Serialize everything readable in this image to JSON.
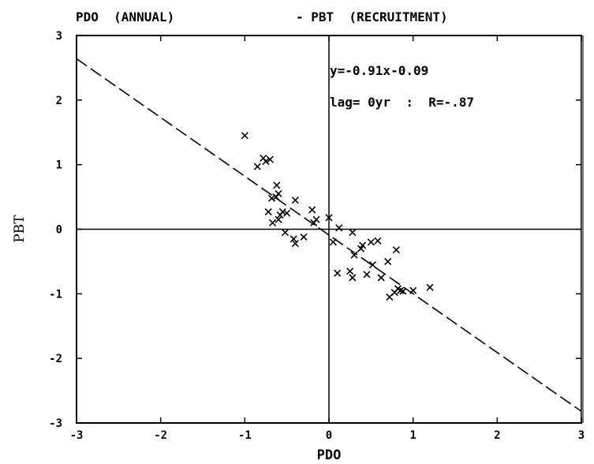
{
  "chart_data": {
    "type": "scatter",
    "title_left": "PDO  (ANNUAL)",
    "title_right": "- PBT  (RECRUITMENT)",
    "xlabel": "PDO",
    "ylabel": "PBT",
    "xlim": [
      -3,
      3
    ],
    "ylim": [
      -3,
      3
    ],
    "xticks": [
      -3,
      -2,
      -1,
      0,
      1,
      2,
      3
    ],
    "yticks": [
      -3,
      -2,
      -1,
      0,
      1,
      2,
      3
    ],
    "xtick_labels": [
      "-3",
      "-2",
      "-1",
      "0",
      "1",
      "2",
      "3"
    ],
    "ytick_labels": [
      "-3",
      "-2",
      "-1",
      "0",
      "1",
      "2",
      "3"
    ],
    "regression": {
      "slope": -0.91,
      "intercept": -0.09,
      "style": "dashed"
    },
    "annotations": {
      "equation": "y=-0.91x-0.09",
      "correlation": "lag= 0yr  :  R=-.87"
    },
    "marker": "x",
    "points": [
      {
        "x": -1.0,
        "y": 1.45
      },
      {
        "x": -0.85,
        "y": 0.97
      },
      {
        "x": -0.78,
        "y": 1.1
      },
      {
        "x": -0.75,
        "y": 1.05
      },
      {
        "x": -0.7,
        "y": 1.08
      },
      {
        "x": -0.62,
        "y": 0.68
      },
      {
        "x": -0.6,
        "y": 0.55
      },
      {
        "x": -0.63,
        "y": 0.5
      },
      {
        "x": -0.68,
        "y": 0.48
      },
      {
        "x": -0.72,
        "y": 0.27
      },
      {
        "x": -0.58,
        "y": 0.22
      },
      {
        "x": -0.55,
        "y": 0.27
      },
      {
        "x": -0.5,
        "y": 0.25
      },
      {
        "x": -0.67,
        "y": 0.1
      },
      {
        "x": -0.6,
        "y": 0.15
      },
      {
        "x": -0.52,
        "y": -0.05
      },
      {
        "x": -0.4,
        "y": 0.45
      },
      {
        "x": -0.42,
        "y": -0.15
      },
      {
        "x": -0.4,
        "y": -0.22
      },
      {
        "x": -0.3,
        "y": -0.12
      },
      {
        "x": -0.2,
        "y": 0.3
      },
      {
        "x": -0.18,
        "y": 0.1
      },
      {
        "x": -0.15,
        "y": 0.15
      },
      {
        "x": 0.0,
        "y": 0.18
      },
      {
        "x": 0.05,
        "y": -0.2
      },
      {
        "x": 0.12,
        "y": 0.02
      },
      {
        "x": 0.1,
        "y": -0.68
      },
      {
        "x": 0.28,
        "y": -0.05
      },
      {
        "x": 0.3,
        "y": -0.4
      },
      {
        "x": 0.25,
        "y": -0.65
      },
      {
        "x": 0.28,
        "y": -0.75
      },
      {
        "x": 0.38,
        "y": -0.3
      },
      {
        "x": 0.4,
        "y": -0.25
      },
      {
        "x": 0.45,
        "y": -0.7
      },
      {
        "x": 0.5,
        "y": -0.2
      },
      {
        "x": 0.52,
        "y": -0.55
      },
      {
        "x": 0.58,
        "y": -0.18
      },
      {
        "x": 0.62,
        "y": -0.75
      },
      {
        "x": 0.7,
        "y": -0.5
      },
      {
        "x": 0.8,
        "y": -0.32
      },
      {
        "x": 0.72,
        "y": -1.05
      },
      {
        "x": 0.78,
        "y": -0.98
      },
      {
        "x": 0.82,
        "y": -0.92
      },
      {
        "x": 0.85,
        "y": -0.95
      },
      {
        "x": 0.88,
        "y": -0.96
      },
      {
        "x": 1.0,
        "y": -0.95
      },
      {
        "x": 1.2,
        "y": -0.9
      }
    ]
  }
}
